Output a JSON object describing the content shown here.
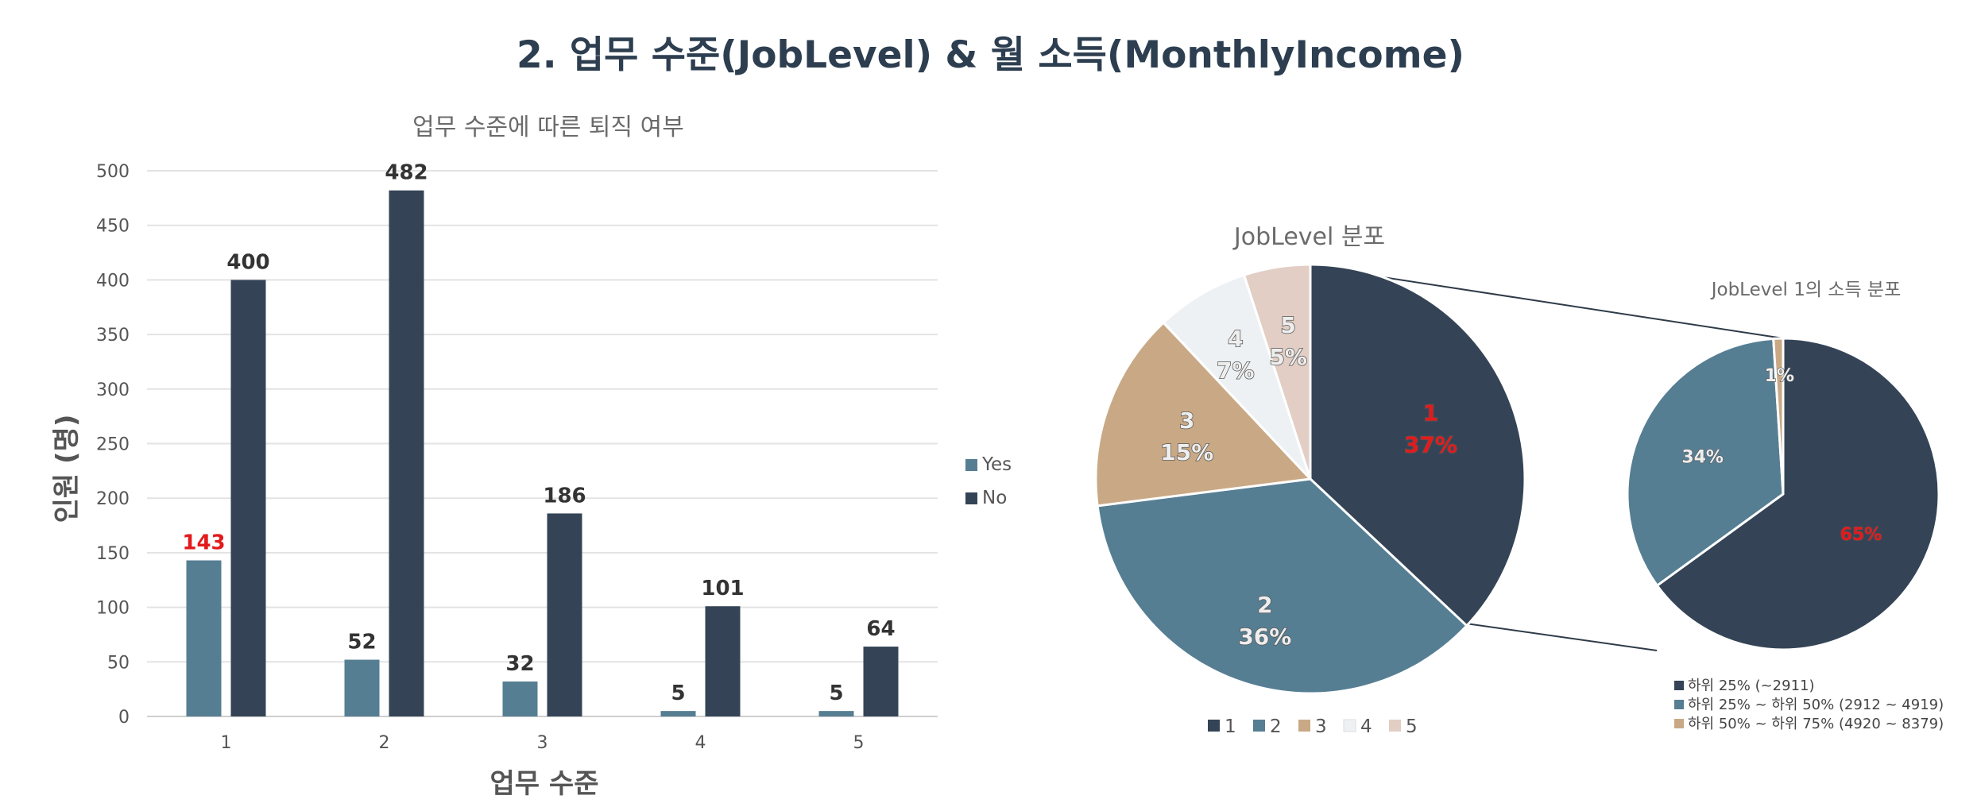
{
  "page_title": "2. 업무 수준(JobLevel) & 월 소득(MonthlyIncome)",
  "colors": {
    "yes": "#567e93",
    "no": "#344456",
    "level1": "#344456",
    "level2": "#567e93",
    "level3": "#c9a985",
    "level4": "#eef1f4",
    "level5": "#e2cec4",
    "highlight_red": "#e31a1c"
  },
  "chart_data": [
    {
      "type": "bar",
      "title": "업무 수준에 따른 퇴직 여부",
      "xlabel": "업무 수준",
      "ylabel": "인원 (명)",
      "categories": [
        "1",
        "2",
        "3",
        "4",
        "5"
      ],
      "series": [
        {
          "name": "Yes",
          "values": [
            143,
            52,
            32,
            5,
            5
          ]
        },
        {
          "name": "No",
          "values": [
            400,
            482,
            186,
            101,
            64
          ]
        }
      ],
      "ylim": [
        0,
        500
      ],
      "yticks": [
        0,
        50,
        100,
        150,
        200,
        250,
        300,
        350,
        400,
        450,
        500
      ],
      "grid": true,
      "legend": "right",
      "highlighted_label": "143"
    },
    {
      "type": "pie",
      "title": "JobLevel 분포",
      "categories": [
        "1",
        "2",
        "3",
        "4",
        "5"
      ],
      "values": [
        37,
        36,
        15,
        7,
        5
      ],
      "labels": [
        "37%",
        "36%",
        "15%",
        "7%",
        "5%"
      ],
      "legend": "bottom",
      "exploded_category": "1"
    },
    {
      "type": "pie",
      "title": "JobLevel 1의 소득 분포",
      "categories": [
        "하위 25% (~2911)",
        "하위 25% ~ 하위 50% (2912 ~ 4919)",
        "하위 50% ~ 하위 75% (4920 ~ 8379)"
      ],
      "values": [
        65,
        34,
        1
      ],
      "labels": [
        "65%",
        "34%",
        "1%"
      ],
      "legend": "bottom"
    }
  ]
}
